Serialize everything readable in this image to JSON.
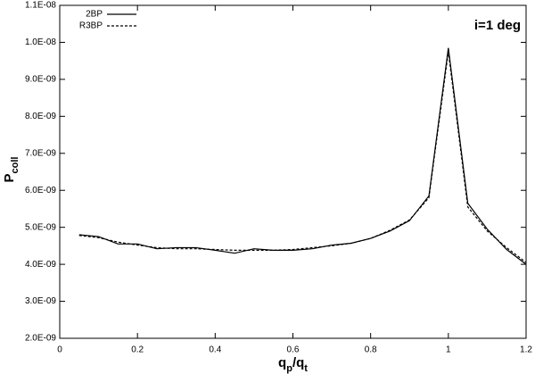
{
  "chart_data": {
    "type": "line",
    "annotation": "i=1 deg",
    "xlabel": [
      "q",
      "p",
      "/q",
      "t"
    ],
    "ylabel": [
      "P",
      "coll"
    ],
    "x": [
      0.05,
      0.1,
      0.15,
      0.2,
      0.25,
      0.3,
      0.35,
      0.4,
      0.45,
      0.5,
      0.55,
      0.6,
      0.65,
      0.7,
      0.75,
      0.8,
      0.85,
      0.9,
      0.95,
      1.0,
      1.05,
      1.1,
      1.15,
      1.2
    ],
    "series": [
      {
        "name": "2BP",
        "color": "#000000",
        "linestyle": "solid",
        "values": [
          4.8e-09,
          4.75e-09,
          4.55e-09,
          4.55e-09,
          4.42e-09,
          4.45e-09,
          4.45e-09,
          4.38e-09,
          4.3e-09,
          4.42e-09,
          4.38e-09,
          4.38e-09,
          4.42e-09,
          4.52e-09,
          4.57e-09,
          4.7e-09,
          4.9e-09,
          5.18e-09,
          5.85e-09,
          9.85e-09,
          5.65e-09,
          4.95e-09,
          4.4e-09,
          4e-09
        ]
      },
      {
        "name": "R3BP",
        "color": "#000000",
        "linestyle": "dashed",
        "values": [
          4.78e-09,
          4.72e-09,
          4.6e-09,
          4.52e-09,
          4.45e-09,
          4.42e-09,
          4.42e-09,
          4.4e-09,
          4.38e-09,
          4.38e-09,
          4.38e-09,
          4.4e-09,
          4.45e-09,
          4.5e-09,
          4.57e-09,
          4.7e-09,
          4.92e-09,
          5.2e-09,
          5.8e-09,
          9.75e-09,
          5.55e-09,
          4.9e-09,
          4.45e-09,
          4.05e-09
        ]
      }
    ],
    "xlim": [
      0,
      1.2
    ],
    "xticks": [
      0,
      0.2,
      0.4,
      0.6,
      0.8,
      1,
      1.2
    ],
    "ylim": [
      2e-09,
      1.1e-08
    ],
    "yticks": [
      {
        "value": 2e-09,
        "label": "2.0E-09"
      },
      {
        "value": 3e-09,
        "label": "3.0E-09"
      },
      {
        "value": 4e-09,
        "label": "4.0E-09"
      },
      {
        "value": 5e-09,
        "label": "5.0E-09"
      },
      {
        "value": 6e-09,
        "label": "6.0E-09"
      },
      {
        "value": 7e-09,
        "label": "7.0E-09"
      },
      {
        "value": 8e-09,
        "label": "8.0E-09"
      },
      {
        "value": 9e-09,
        "label": "9.0E-09"
      },
      {
        "value": 1e-08,
        "label": "1.0E-08"
      },
      {
        "value": 1.1e-08,
        "label": "1.1E-08"
      }
    ],
    "legend": "upper left",
    "grid": false
  }
}
